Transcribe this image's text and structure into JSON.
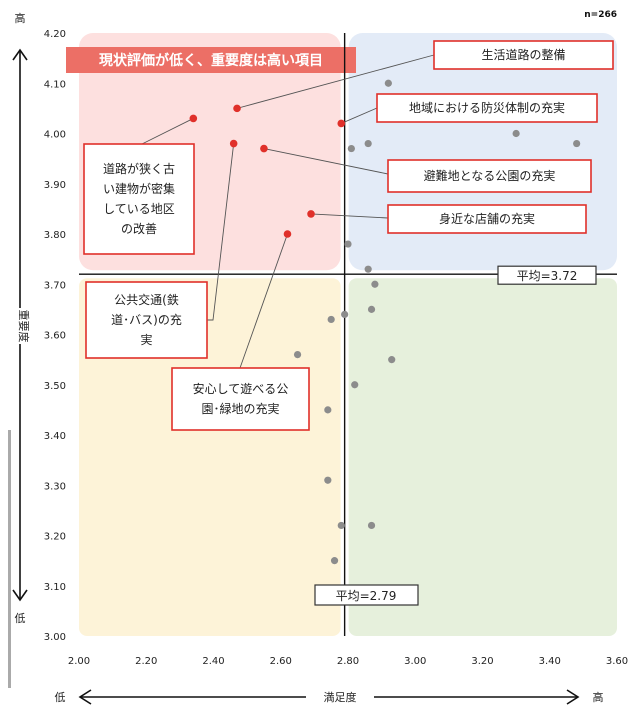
{
  "chart_data": {
    "type": "scatter",
    "n_label": "n=266",
    "xlabel": "満足度",
    "ylabel": "重要度",
    "x_low_label": "低",
    "x_high_label": "高",
    "y_low_label": "低",
    "y_high_label": "高",
    "xlim": [
      2.0,
      3.6
    ],
    "ylim": [
      3.0,
      4.2
    ],
    "x_ticks": [
      "2.00",
      "2.20",
      "2.40",
      "2.60",
      "2.80",
      "3.00",
      "3.20",
      "3.40",
      "3.60"
    ],
    "y_ticks": [
      "3.00",
      "3.10",
      "3.20",
      "3.30",
      "3.40",
      "3.50",
      "3.60",
      "3.70",
      "3.80",
      "3.90",
      "4.00",
      "4.10",
      "4.20"
    ],
    "x_mean": 2.79,
    "y_mean": 3.72,
    "x_mean_label": "平均=2.79",
    "y_mean_label": "平均=3.72",
    "quadrant_title": "現状評価が低く、重要度は高い項目",
    "colors": {
      "upper_left": "#fde0df",
      "upper_right": "#e3ebf7",
      "lower_left": "#fdf3d8",
      "lower_right": "#e6f0dc",
      "highlight": "#e0302a",
      "other": "#8c8c8c",
      "title_bg": "#ec6f66"
    },
    "highlighted": [
      {
        "label": "生活道路の整備",
        "x": 2.47,
        "y": 4.05
      },
      {
        "label": "道路が狭く古い建物が密集している地区の改善",
        "x": 2.34,
        "y": 4.03
      },
      {
        "label": "地域における防災体制の充実",
        "x": 2.78,
        "y": 4.02
      },
      {
        "label": "公共交通(鉄道･バス)の充実",
        "x": 2.46,
        "y": 3.98
      },
      {
        "label": "避難地となる公園の充実",
        "x": 2.55,
        "y": 3.97
      },
      {
        "label": "身近な店舗の充実",
        "x": 2.69,
        "y": 3.84
      },
      {
        "label": "安心して遊べる公園･緑地の充実",
        "x": 2.62,
        "y": 3.8
      }
    ],
    "callouts": [
      {
        "lines": [
          "生活道路の整備"
        ]
      },
      {
        "lines": [
          "道路が狭く古",
          "い建物が密集",
          "している地区",
          "の改善"
        ]
      },
      {
        "lines": [
          "地域における防災体制の充実"
        ]
      },
      {
        "lines": [
          "公共交通(鉄",
          "道･バス)の充",
          "実"
        ]
      },
      {
        "lines": [
          "避難地となる公園の充実"
        ]
      },
      {
        "lines": [
          "身近な店舗の充実"
        ]
      },
      {
        "lines": [
          "安心して遊べる公",
          "園･緑地の充実"
        ]
      }
    ],
    "others": [
      {
        "x": 2.92,
        "y": 4.1
      },
      {
        "x": 3.3,
        "y": 4.0
      },
      {
        "x": 3.48,
        "y": 3.98
      },
      {
        "x": 2.86,
        "y": 3.98
      },
      {
        "x": 2.81,
        "y": 3.97
      },
      {
        "x": 2.8,
        "y": 3.78
      },
      {
        "x": 2.86,
        "y": 3.73
      },
      {
        "x": 2.88,
        "y": 3.7
      },
      {
        "x": 2.87,
        "y": 3.65
      },
      {
        "x": 2.79,
        "y": 3.64
      },
      {
        "x": 2.75,
        "y": 3.63
      },
      {
        "x": 2.65,
        "y": 3.56
      },
      {
        "x": 2.93,
        "y": 3.55
      },
      {
        "x": 2.82,
        "y": 3.5
      },
      {
        "x": 2.74,
        "y": 3.45
      },
      {
        "x": 2.74,
        "y": 3.31
      },
      {
        "x": 2.78,
        "y": 3.22
      },
      {
        "x": 2.87,
        "y": 3.22
      },
      {
        "x": 2.76,
        "y": 3.15
      }
    ]
  }
}
